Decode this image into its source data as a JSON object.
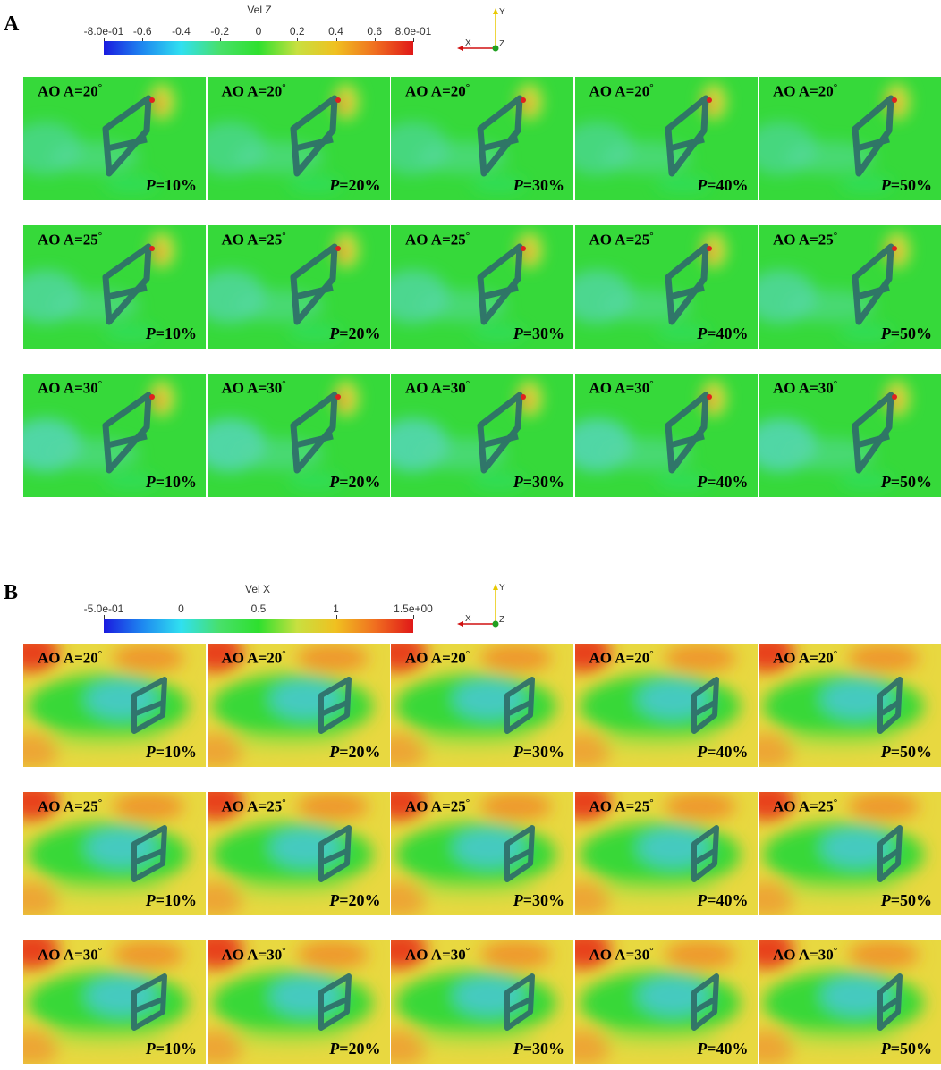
{
  "panels": [
    {
      "letter": "A",
      "field": "velz",
      "colorbar": {
        "title": "Vel Z",
        "ticks": [
          "-8.0e-01",
          "-0.6",
          "-0.4",
          "-0.2",
          "0",
          "0.2",
          "0.4",
          "0.6",
          "8.0e-01"
        ],
        "tick_values": [
          -0.8,
          -0.6,
          -0.4,
          -0.2,
          0,
          0.2,
          0.4,
          0.6,
          0.8
        ],
        "range": [
          -0.8,
          0.8
        ],
        "colors": [
          "#1a1adf",
          "#1e88f0",
          "#30e0f0",
          "#48e06a",
          "#2ee02e",
          "#c8e040",
          "#f0c020",
          "#f07020",
          "#e01818"
        ]
      },
      "axes": {
        "y_label": "Y",
        "x_label": "X",
        "z_label": "Z"
      },
      "rows": [
        {
          "aoa_label": "AO A=20",
          "aoa_deg": 20,
          "tiles": [
            {
              "p_label": "P",
              "p_value": "=10%"
            },
            {
              "p_label": "P",
              "p_value": "=20%"
            },
            {
              "p_label": "P",
              "p_value": "=30%"
            },
            {
              "p_label": "P",
              "p_value": "=40%"
            },
            {
              "p_label": "P",
              "p_value": "=50%"
            }
          ]
        },
        {
          "aoa_label": "AO A=25",
          "aoa_deg": 25,
          "tiles": [
            {
              "p_label": "P",
              "p_value": "=10%"
            },
            {
              "p_label": "P",
              "p_value": "=20%"
            },
            {
              "p_label": "P",
              "p_value": "=30%"
            },
            {
              "p_label": "P",
              "p_value": "=40%"
            },
            {
              "p_label": "P",
              "p_value": "=50%"
            }
          ]
        },
        {
          "aoa_label": "AO A=30",
          "aoa_deg": 30,
          "tiles": [
            {
              "p_label": "P",
              "p_value": "=10%"
            },
            {
              "p_label": "P",
              "p_value": "=20%"
            },
            {
              "p_label": "P",
              "p_value": "=30%"
            },
            {
              "p_label": "P",
              "p_value": "=40%"
            },
            {
              "p_label": "P",
              "p_value": "=50%"
            }
          ]
        }
      ]
    },
    {
      "letter": "B",
      "field": "velx",
      "colorbar": {
        "title": "Vel X",
        "ticks": [
          "-5.0e-01",
          "0",
          "0.5",
          "1",
          "1.5e+00"
        ],
        "tick_values": [
          -0.5,
          0,
          0.5,
          1,
          1.5
        ],
        "range": [
          -0.5,
          1.5
        ],
        "colors": [
          "#1a1adf",
          "#1e88f0",
          "#30e0f0",
          "#48e06a",
          "#2ee02e",
          "#c8e040",
          "#f0c020",
          "#f07020",
          "#e01818"
        ]
      },
      "axes": {
        "y_label": "Y",
        "x_label": "X",
        "z_label": "Z"
      },
      "rows": [
        {
          "aoa_label": "AO A=20",
          "aoa_deg": 20,
          "tiles": [
            {
              "p_label": "P",
              "p_value": "=10%"
            },
            {
              "p_label": "P",
              "p_value": "=20%"
            },
            {
              "p_label": "P",
              "p_value": "=30%"
            },
            {
              "p_label": "P",
              "p_value": "=40%"
            },
            {
              "p_label": "P",
              "p_value": "=50%"
            }
          ]
        },
        {
          "aoa_label": "AO A=25",
          "aoa_deg": 25,
          "tiles": [
            {
              "p_label": "P",
              "p_value": "=10%"
            },
            {
              "p_label": "P",
              "p_value": "=20%"
            },
            {
              "p_label": "P",
              "p_value": "=30%"
            },
            {
              "p_label": "P",
              "p_value": "=40%"
            },
            {
              "p_label": "P",
              "p_value": "=50%"
            }
          ]
        },
        {
          "aoa_label": "AO A=30",
          "aoa_deg": 30,
          "tiles": [
            {
              "p_label": "P",
              "p_value": "=10%"
            },
            {
              "p_label": "P",
              "p_value": "=20%"
            },
            {
              "p_label": "P",
              "p_value": "=30%"
            },
            {
              "p_label": "P",
              "p_value": "=40%"
            },
            {
              "p_label": "P",
              "p_value": "=50%"
            }
          ]
        }
      ]
    }
  ]
}
